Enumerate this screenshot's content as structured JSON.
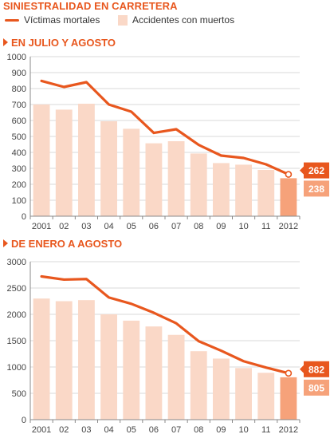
{
  "title": "SINIESTRALIDAD EN CARRETERA",
  "legend": {
    "line_label": "Víctimas mortales",
    "bar_label": "Accidentes con muertos"
  },
  "colors": {
    "accent": "#e8571e",
    "bar": "#fad8c7",
    "bar_highlight": "#f6a27a",
    "line": "#e8571e",
    "grid": "#d9d9d9"
  },
  "chart_data": [
    {
      "type": "bar",
      "title": "EN JULIO Y AGOSTO",
      "categories": [
        "2001",
        "02",
        "03",
        "04",
        "05",
        "06",
        "07",
        "08",
        "09",
        "10",
        "11",
        "2012"
      ],
      "series": [
        {
          "name": "Accidentes con muertos",
          "type": "bar",
          "values": [
            700,
            668,
            705,
            595,
            548,
            457,
            470,
            393,
            333,
            323,
            290,
            238
          ]
        },
        {
          "name": "Víctimas mortales",
          "type": "line",
          "values": [
            848,
            810,
            840,
            700,
            655,
            522,
            545,
            447,
            380,
            365,
            325,
            262
          ]
        }
      ],
      "yticks": [
        0,
        100,
        200,
        300,
        400,
        500,
        600,
        700,
        800,
        900,
        1000
      ],
      "ylim": [
        0,
        1000
      ],
      "grid": true,
      "callouts": {
        "line_last": "262",
        "bar_last": "238"
      }
    },
    {
      "type": "bar",
      "title": "DE ENERO A AGOSTO",
      "categories": [
        "2001",
        "02",
        "03",
        "04",
        "05",
        "06",
        "07",
        "08",
        "09",
        "10",
        "11",
        "2012"
      ],
      "series": [
        {
          "name": "Accidentes con muertos",
          "type": "bar",
          "values": [
            2300,
            2250,
            2270,
            2000,
            1880,
            1770,
            1610,
            1300,
            1160,
            980,
            890,
            805
          ]
        },
        {
          "name": "Víctimas mortales",
          "type": "line",
          "values": [
            2720,
            2660,
            2670,
            2320,
            2200,
            2030,
            1830,
            1490,
            1310,
            1110,
            990,
            882
          ]
        }
      ],
      "yticks": [
        0,
        500,
        1000,
        1500,
        2000,
        2500,
        3000
      ],
      "ylim": [
        0,
        3000
      ],
      "grid": true,
      "callouts": {
        "line_last": "882",
        "bar_last": "805"
      }
    }
  ]
}
